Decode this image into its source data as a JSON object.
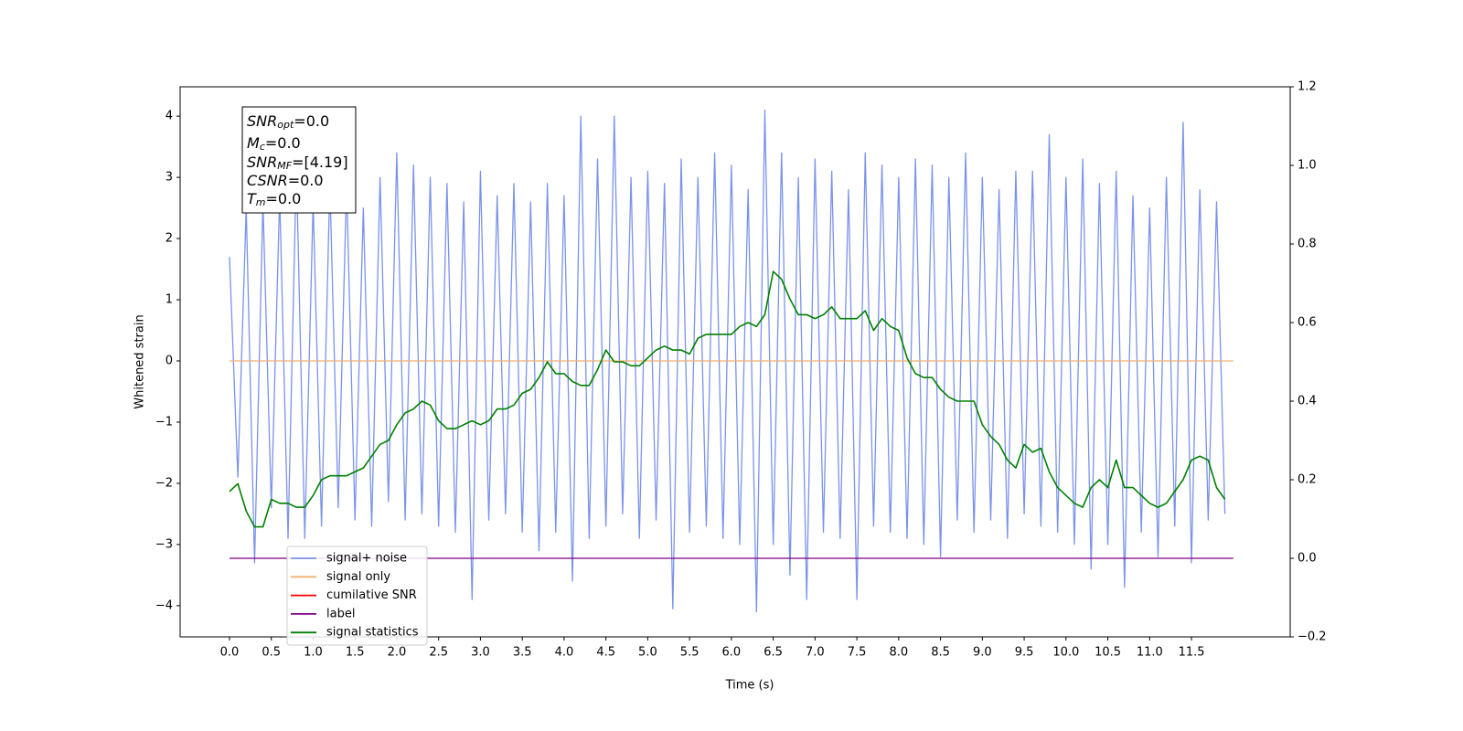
{
  "chart_data": {
    "type": "line",
    "xlabel": "Time (s)",
    "ylabel": "Whitened strain",
    "xlim": [
      -0.59,
      12.68
    ],
    "ylim": [
      -4.51,
      4.48
    ],
    "y2lim": [
      -0.2,
      1.2
    ],
    "xticks": [
      {
        "value": 0,
        "label": "0.0"
      },
      0.5,
      {
        "value": 1,
        "label": "1.0"
      },
      1.5,
      {
        "value": 2,
        "label": "2.0"
      },
      2.5,
      {
        "value": 3,
        "label": "3.0"
      },
      3.5,
      {
        "value": 4,
        "label": "4.0"
      },
      4.5,
      {
        "value": 5,
        "label": "5.0"
      },
      5.5,
      {
        "value": 6,
        "label": "6.0"
      },
      6.5,
      {
        "value": 7,
        "label": "7.0"
      },
      7.5,
      {
        "value": 8,
        "label": "8.0"
      },
      8.5,
      {
        "value": 9,
        "label": "9.0"
      },
      9.5,
      {
        "value": 10,
        "label": "10.0"
      },
      10.5,
      {
        "value": 11,
        "label": "11.0"
      },
      11.5
    ],
    "yticks": [
      {
        "value": -4,
        "label": "−4"
      },
      {
        "value": -3,
        "label": "−3"
      },
      {
        "value": -2,
        "label": "−2"
      },
      {
        "value": -1,
        "label": "−1"
      },
      0,
      1,
      2,
      3,
      4
    ],
    "y2ticks": [
      {
        "value": -0.2,
        "label": "−0.2"
      },
      {
        "value": 0,
        "label": "0.0"
      },
      0.2,
      0.4,
      0.6,
      0.8,
      {
        "value": 1,
        "label": "1.0"
      },
      1.2
    ],
    "grid": false,
    "legend_loc": "lower left",
    "annotations": [
      {
        "symbol": "SNR",
        "subscript": "opt",
        "text": "=0.0"
      },
      {
        "symbol": "M",
        "subscript": "c",
        "text": "=0.0"
      },
      {
        "symbol": "SNR",
        "subscript": "MF",
        "text": "=[4.19]"
      },
      {
        "symbol": "CSNR",
        "text": "=0.0"
      },
      {
        "symbol": "T",
        "subscript": "m",
        "text": "=0.0"
      }
    ],
    "x": [
      0,
      0.1,
      0.2,
      0.3,
      0.4,
      0.5,
      0.6,
      0.7,
      0.8,
      0.9,
      1,
      1.1,
      1.2,
      1.3,
      1.4,
      1.5,
      1.6,
      1.7,
      1.8,
      1.9,
      2,
      2.1,
      2.2,
      2.3,
      2.4,
      2.5,
      2.6,
      2.7,
      2.8,
      2.9,
      3,
      3.1,
      3.2,
      3.3,
      3.4,
      3.5,
      3.6,
      3.7,
      3.8,
      3.9,
      4,
      4.1,
      4.2,
      4.3,
      4.4,
      4.5,
      4.6,
      4.7,
      4.8,
      4.9,
      5,
      5.1,
      5.2,
      5.3,
      5.4,
      5.5,
      5.6,
      5.7,
      5.8,
      5.9,
      6,
      6.1,
      6.2,
      6.3,
      6.4,
      6.5,
      6.6,
      6.7,
      6.8,
      6.9,
      7,
      7.1,
      7.2,
      7.3,
      7.4,
      7.5,
      7.6,
      7.7,
      7.8,
      7.9,
      8,
      8.1,
      8.2,
      8.3,
      8.4,
      8.5,
      8.6,
      8.7,
      8.8,
      8.9,
      9,
      9.1,
      9.2,
      9.3,
      9.4,
      9.5,
      9.6,
      9.7,
      9.8,
      9.9,
      10,
      10.1,
      10.2,
      10.3,
      10.4,
      10.5,
      10.6,
      10.7,
      10.8,
      10.9,
      11,
      11.1,
      11.2,
      11.3,
      11.4,
      11.5,
      11.6,
      11.7,
      11.8,
      11.9
    ],
    "series": [
      {
        "name": "signal+ noise",
        "color": "#7a93e8",
        "values": [
          1.7,
          -1.9,
          2.5,
          -3.3,
          2.6,
          -2.4,
          2.7,
          -2.9,
          3.2,
          -2.9,
          2.6,
          -2.7,
          2.9,
          -2.4,
          2.9,
          -2.6,
          2.5,
          -2.7,
          3.0,
          -2.3,
          3.4,
          -2.6,
          3.2,
          -2.5,
          3.0,
          -2.7,
          2.9,
          -2.8,
          2.6,
          -3.9,
          3.1,
          -2.6,
          2.7,
          -2.5,
          2.9,
          -2.8,
          2.6,
          -3.1,
          2.9,
          -2.8,
          2.7,
          -3.6,
          4.0,
          -2.9,
          3.3,
          -2.7,
          4.0,
          -2.5,
          3.0,
          -2.9,
          3.1,
          -2.6,
          2.9,
          -4.05,
          3.3,
          -2.8,
          3.0,
          -2.7,
          3.4,
          -2.9,
          3.2,
          -3.0,
          2.8,
          -4.1,
          4.1,
          -3.0,
          3.4,
          -3.5,
          3.0,
          -3.9,
          3.3,
          -2.8,
          3.1,
          -2.9,
          2.8,
          -3.9,
          3.4,
          -2.7,
          3.2,
          -2.8,
          3.0,
          -2.9,
          3.3,
          -3.0,
          3.2,
          -3.2,
          3.0,
          -2.6,
          3.4,
          -2.8,
          3.0,
          -2.6,
          2.8,
          -2.9,
          3.1,
          -2.5,
          3.1,
          -2.7,
          3.7,
          -2.8,
          3.0,
          -3.0,
          3.3,
          -3.4,
          2.9,
          -3.0,
          3.1,
          -3.7,
          2.7,
          -2.8,
          2.5,
          -3.2,
          3.0,
          -2.7,
          3.9,
          -3.3,
          2.8,
          -2.6,
          2.6,
          -2.5
        ]
      },
      {
        "name": "signal only",
        "color": "#f0b070",
        "x": [
          0,
          12.0
        ],
        "values": [
          0,
          0
        ]
      },
      {
        "name": "cumilative SNR",
        "color": "#ff0000",
        "x": [],
        "values": []
      },
      {
        "name": "label",
        "color": "#800080",
        "axis": "y2",
        "x": [
          0,
          12.0
        ],
        "values": [
          0,
          0
        ]
      },
      {
        "name": "signal statistics",
        "color": "#008000",
        "axis": "y2",
        "values": [
          0.17,
          0.19,
          0.12,
          0.08,
          0.08,
          0.15,
          0.14,
          0.14,
          0.13,
          0.13,
          0.16,
          0.2,
          0.21,
          0.21,
          0.21,
          0.22,
          0.23,
          0.26,
          0.29,
          0.3,
          0.34,
          0.37,
          0.38,
          0.4,
          0.39,
          0.35,
          0.33,
          0.33,
          0.34,
          0.35,
          0.34,
          0.35,
          0.38,
          0.38,
          0.39,
          0.42,
          0.43,
          0.46,
          0.5,
          0.47,
          0.47,
          0.45,
          0.44,
          0.44,
          0.48,
          0.53,
          0.5,
          0.5,
          0.49,
          0.49,
          0.51,
          0.53,
          0.54,
          0.53,
          0.53,
          0.52,
          0.56,
          0.57,
          0.57,
          0.57,
          0.57,
          0.59,
          0.6,
          0.59,
          0.62,
          0.73,
          0.71,
          0.66,
          0.62,
          0.62,
          0.61,
          0.62,
          0.64,
          0.61,
          0.61,
          0.61,
          0.63,
          0.58,
          0.61,
          0.59,
          0.58,
          0.51,
          0.47,
          0.46,
          0.46,
          0.43,
          0.41,
          0.4,
          0.4,
          0.4,
          0.34,
          0.31,
          0.29,
          0.25,
          0.23,
          0.29,
          0.27,
          0.28,
          0.22,
          0.18,
          0.16,
          0.14,
          0.13,
          0.18,
          0.2,
          0.18,
          0.25,
          0.18,
          0.18,
          0.16,
          0.14,
          0.13,
          0.14,
          0.17,
          0.2,
          0.25,
          0.26,
          0.25,
          0.18,
          0.15
        ]
      }
    ]
  }
}
